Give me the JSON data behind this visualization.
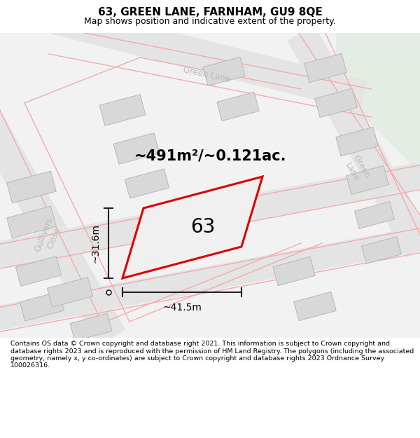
{
  "title": "63, GREEN LANE, FARNHAM, GU9 8QE",
  "subtitle": "Map shows position and indicative extent of the property.",
  "footer": "Contains OS data © Crown copyright and database right 2021. This information is subject to Crown copyright and database rights 2023 and is reproduced with the permission of HM Land Registry. The polygons (including the associated geometry, namely x, y co-ordinates) are subject to Crown copyright and database rights 2023 Ordnance Survey 100026316.",
  "area_label": "~491m²/~0.121ac.",
  "width_label": "~41.5m",
  "height_label": "~31.6m",
  "number_label": "63",
  "map_bg": "#f2f2f2",
  "building_color": "#d8d8d8",
  "building_outline": "#b8b8b8",
  "road_fill": "#e4e4e4",
  "pink": "#f5aaaa",
  "green_area": "#e4ede4",
  "plot_outline": "#dd0000",
  "dim_color": "#222222",
  "street_color": "#bbbbbb",
  "title_fontsize": 11,
  "subtitle_fontsize": 9,
  "footer_fontsize": 6.8,
  "area_fontsize": 15,
  "number_fontsize": 20,
  "dim_fontsize": 10,
  "street_fontsize": 8.5
}
